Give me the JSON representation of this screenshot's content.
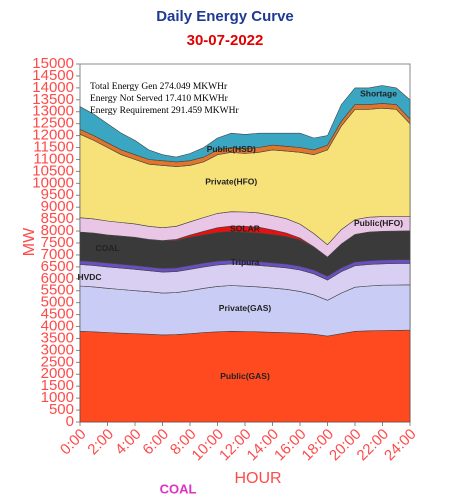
{
  "chart_data": {
    "type": "stacked_area",
    "title": "Daily Energy Curve",
    "subtitle": "30-07-2022",
    "y_label": "MW",
    "x_label": "HOUR",
    "annotations": [
      "Total Energy Gen 274.049 MKWHr",
      "Energy Not Served  17.410 MKWHr",
      "Energy Requirement    291.459 MKWHr"
    ],
    "stray_label": "COAL",
    "x": [
      0,
      1,
      2,
      3,
      4,
      5,
      6,
      7,
      8,
      9,
      10,
      11,
      12,
      13,
      14,
      15,
      16,
      17,
      18,
      19,
      20,
      21,
      22,
      23,
      24
    ],
    "xlim": [
      0,
      24
    ],
    "xticks": [
      {
        "value": 0,
        "label": "0:00"
      },
      {
        "value": 2,
        "label": "2:00"
      },
      {
        "value": 4,
        "label": "4:00"
      },
      {
        "value": 6,
        "label": "6:00"
      },
      {
        "value": 8,
        "label": "8:00"
      },
      {
        "value": 10,
        "label": "10:00"
      },
      {
        "value": 12,
        "label": "12:00"
      },
      {
        "value": 14,
        "label": "14:00"
      },
      {
        "value": 16,
        "label": "16:00"
      },
      {
        "value": 18,
        "label": "18:00"
      },
      {
        "value": 20,
        "label": "20:00"
      },
      {
        "value": 22,
        "label": "22:00"
      },
      {
        "value": 24,
        "label": "24:00"
      }
    ],
    "ylim": [
      0,
      15000
    ],
    "yticks": [
      0,
      500,
      1000,
      1500,
      2000,
      2500,
      3000,
      3500,
      4000,
      4500,
      5000,
      5500,
      6000,
      6500,
      7000,
      7500,
      8000,
      8500,
      9000,
      9500,
      10000,
      10500,
      11000,
      11500,
      12000,
      12500,
      13000,
      13500,
      14000,
      14500,
      15000
    ],
    "series": [
      {
        "name": "Public(GAS)",
        "color": "#ff4a1f",
        "values": [
          3800,
          3780,
          3750,
          3720,
          3700,
          3680,
          3650,
          3660,
          3700,
          3750,
          3780,
          3800,
          3790,
          3780,
          3760,
          3740,
          3720,
          3680,
          3600,
          3700,
          3800,
          3820,
          3830,
          3840,
          3850
        ]
      },
      {
        "name": "Private(GAS)",
        "color": "#c9cdf5",
        "values": [
          1900,
          1880,
          1850,
          1830,
          1800,
          1780,
          1750,
          1760,
          1800,
          1850,
          1900,
          1920,
          1900,
          1880,
          1850,
          1820,
          1750,
          1650,
          1500,
          1700,
          1850,
          1880,
          1900,
          1900,
          1900
        ]
      },
      {
        "name": "HVDC",
        "color": "#d8cff2",
        "values": [
          900,
          900,
          900,
          900,
          900,
          880,
          880,
          880,
          900,
          900,
          900,
          900,
          900,
          900,
          900,
          900,
          900,
          880,
          850,
          900,
          900,
          900,
          900,
          900,
          900
        ]
      },
      {
        "name": "Tripura",
        "color": "#6a4fc0",
        "values": [
          160,
          160,
          160,
          160,
          160,
          160,
          160,
          160,
          160,
          160,
          160,
          160,
          160,
          160,
          160,
          160,
          160,
          160,
          160,
          160,
          160,
          160,
          160,
          160,
          160
        ]
      },
      {
        "name": "COAL",
        "color": "#3a3a3a",
        "values": [
          1200,
          1200,
          1180,
          1180,
          1180,
          1150,
          1150,
          1150,
          1180,
          1180,
          1200,
          1200,
          1200,
          1200,
          1180,
          1150,
          1100,
          950,
          800,
          1000,
          1150,
          1200,
          1200,
          1200,
          1200
        ]
      },
      {
        "name": "SOLAR",
        "color": "#e81010",
        "values": [
          0,
          0,
          0,
          0,
          0,
          0,
          10,
          40,
          90,
          150,
          200,
          230,
          250,
          240,
          200,
          150,
          80,
          20,
          0,
          0,
          0,
          0,
          0,
          0,
          0
        ]
      },
      {
        "name": "Public(HFO)",
        "color": "#e9c6e6",
        "values": [
          600,
          590,
          580,
          570,
          560,
          550,
          540,
          550,
          560,
          580,
          600,
          600,
          600,
          600,
          600,
          600,
          580,
          560,
          520,
          600,
          620,
          620,
          620,
          610,
          600
        ]
      },
      {
        "name": "Private(HFO)",
        "color": "#f7e27a",
        "values": [
          3500,
          3290,
          3080,
          2840,
          2700,
          2600,
          2610,
          2500,
          2360,
          2330,
          2460,
          2490,
          2450,
          2540,
          2750,
          2830,
          3010,
          3300,
          3970,
          4340,
          4620,
          4520,
          4540,
          4490,
          3890
        ]
      },
      {
        "name": "Public(HSD)",
        "color": "#e0762c",
        "values": [
          200,
          200,
          200,
          200,
          200,
          200,
          200,
          200,
          200,
          200,
          200,
          200,
          200,
          200,
          200,
          200,
          200,
          200,
          200,
          200,
          200,
          200,
          200,
          200,
          200
        ]
      },
      {
        "name": "Shortage",
        "color": "#3aa6c2",
        "values": [
          950,
          900,
          800,
          700,
          600,
          400,
          250,
          200,
          300,
          400,
          500,
          600,
          600,
          600,
          500,
          550,
          600,
          500,
          400,
          700,
          700,
          700,
          750,
          700,
          800
        ]
      }
    ]
  }
}
